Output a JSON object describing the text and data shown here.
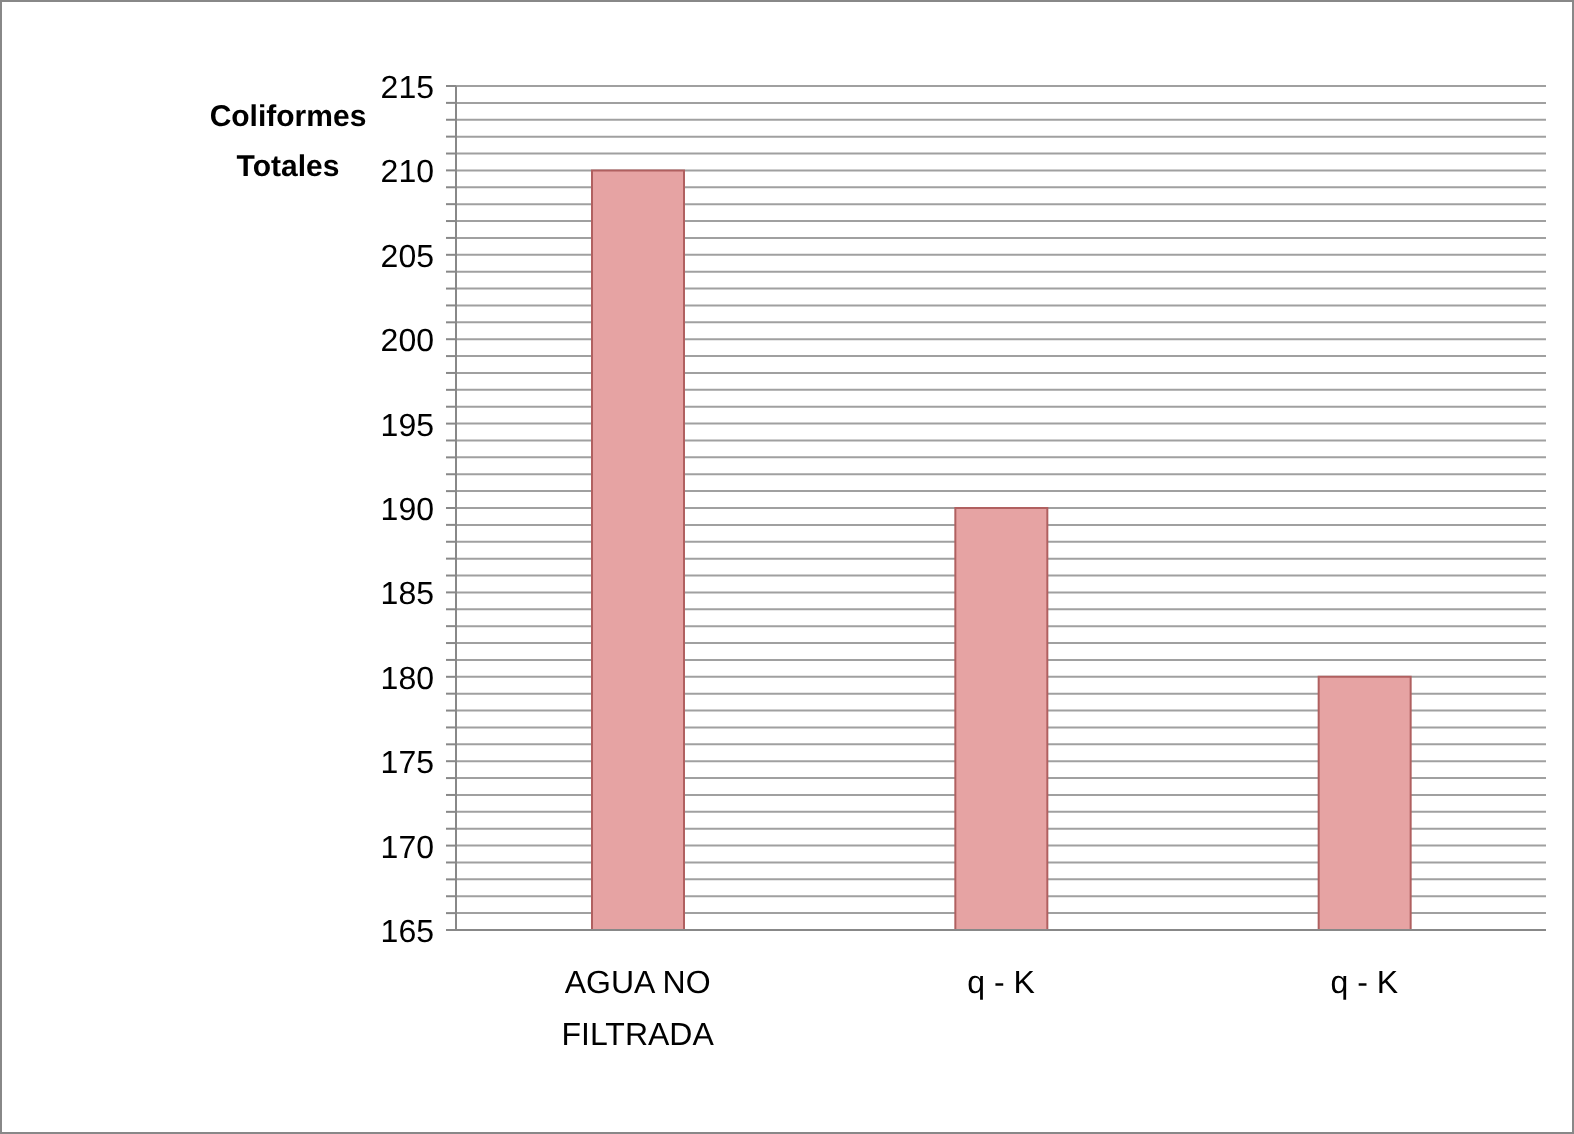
{
  "chart_data": {
    "type": "bar",
    "ylabel": "Coliformes Totales",
    "categories": [
      "AGUA NO FILTRADA",
      "q - K",
      "q - K"
    ],
    "values": [
      210,
      190,
      180
    ],
    "color": "#e6a3a3",
    "ylim": [
      165,
      215
    ],
    "yticks": [
      165,
      {
        "value": 166,
        "label": null
      },
      {
        "value": 167,
        "label": null
      },
      {
        "value": 168,
        "label": null
      },
      {
        "value": 169,
        "label": null
      },
      170,
      {
        "value": 171,
        "label": null
      },
      {
        "value": 172,
        "label": null
      },
      {
        "value": 173,
        "label": null
      },
      {
        "value": 174,
        "label": null
      },
      175,
      {
        "value": 176,
        "label": null
      },
      {
        "value": 177,
        "label": null
      },
      {
        "value": 178,
        "label": null
      },
      {
        "value": 179,
        "label": null
      },
      180,
      {
        "value": 181,
        "label": null
      },
      {
        "value": 182,
        "label": null
      },
      {
        "value": 183,
        "label": null
      },
      {
        "value": 184,
        "label": null
      },
      185,
      {
        "value": 186,
        "label": null
      },
      {
        "value": 187,
        "label": null
      },
      {
        "value": 188,
        "label": null
      },
      {
        "value": 189,
        "label": null
      },
      190,
      {
        "value": 191,
        "label": null
      },
      {
        "value": 192,
        "label": null
      },
      {
        "value": 193,
        "label": null
      },
      {
        "value": 194,
        "label": null
      },
      195,
      {
        "value": 196,
        "label": null
      },
      {
        "value": 197,
        "label": null
      },
      {
        "value": 198,
        "label": null
      },
      {
        "value": 199,
        "label": null
      },
      200,
      {
        "value": 201,
        "label": null
      },
      {
        "value": 202,
        "label": null
      },
      {
        "value": 203,
        "label": null
      },
      {
        "value": 204,
        "label": null
      },
      205,
      {
        "value": 206,
        "label": null
      },
      {
        "value": 207,
        "label": null
      },
      {
        "value": 208,
        "label": null
      },
      {
        "value": 209,
        "label": null
      },
      210,
      {
        "value": 211,
        "label": null
      },
      {
        "value": 212,
        "label": null
      },
      {
        "value": 213,
        "label": null
      },
      {
        "value": 214,
        "label": null
      },
      215
    ],
    "grid": "y"
  }
}
